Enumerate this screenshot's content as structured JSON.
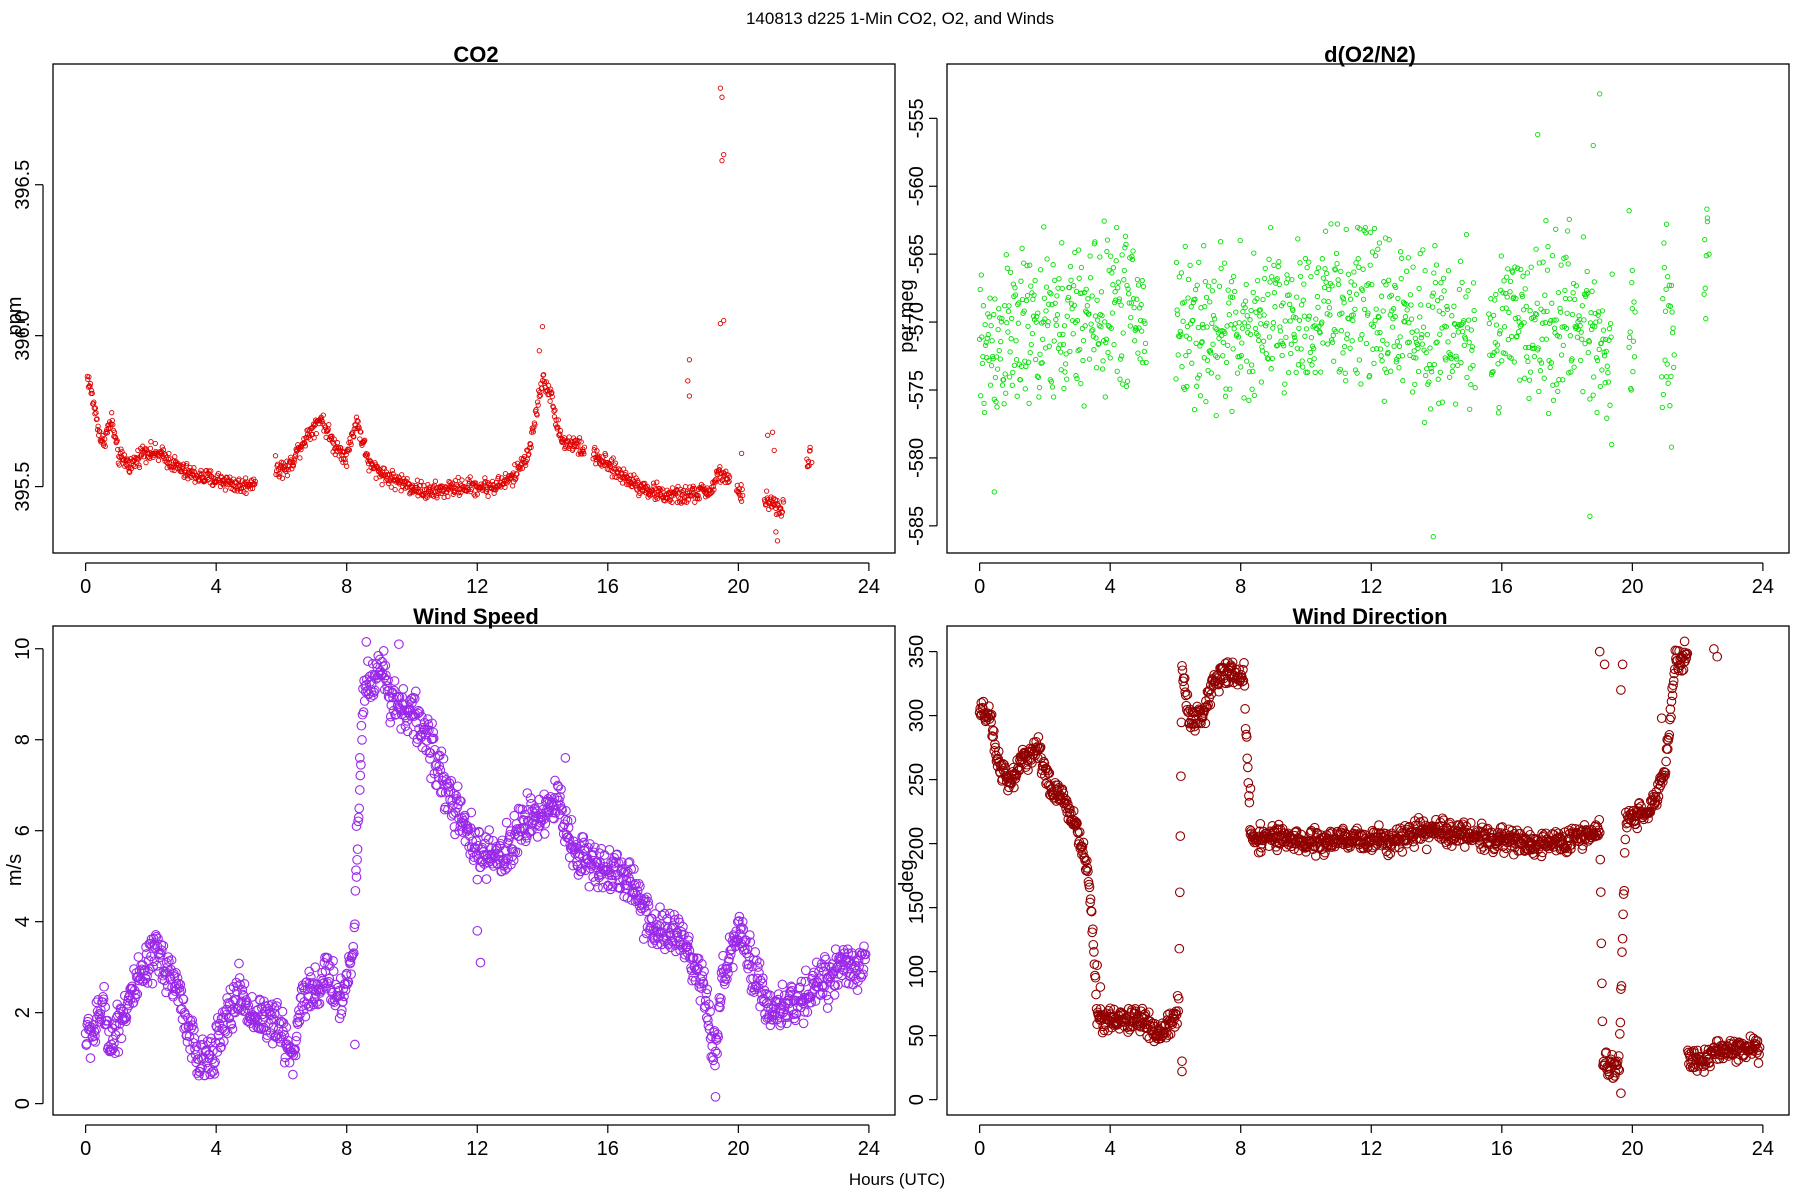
{
  "figure": {
    "supertitle": "140813   d225   1-Min CO2, O2, and Winds",
    "x_axis_label": "Hours (UTC)"
  },
  "chart_data": [
    {
      "type": "scatter",
      "title": "CO2",
      "ylabel": "ppm",
      "xlabel": "",
      "xlim": [
        -1,
        24.8
      ],
      "ylim": [
        395.28,
        396.9
      ],
      "xticks": [
        0,
        4,
        8,
        12,
        16,
        20,
        24
      ],
      "yticks": [
        395.5,
        396.0,
        396.5
      ],
      "ytick_labels": [
        "395.5",
        "396.0",
        "396.5"
      ],
      "color": "#e00000",
      "marker_size": "small",
      "series": [
        {
          "knots": [
            [
              0.05,
              395.86
            ],
            [
              0.1,
              395.85
            ],
            [
              0.5,
              395.64
            ],
            [
              0.8,
              395.72
            ],
            [
              1.0,
              395.6
            ],
            [
              1.4,
              395.57
            ],
            [
              1.8,
              395.62
            ],
            [
              2.4,
              395.6
            ],
            [
              3.0,
              395.55
            ],
            [
              3.6,
              395.53
            ],
            [
              4.2,
              395.52
            ],
            [
              4.8,
              395.5
            ],
            [
              5.2,
              395.52
            ],
            [
              5.8,
              395.56
            ],
            [
              6.2,
              395.56
            ],
            [
              6.6,
              395.64
            ],
            [
              7.2,
              395.73
            ],
            [
              7.6,
              395.64
            ],
            [
              8.0,
              395.6
            ],
            [
              8.3,
              395.72
            ],
            [
              8.7,
              395.57
            ],
            [
              9.3,
              395.53
            ],
            [
              10.0,
              395.5
            ],
            [
              10.5,
              395.48
            ],
            [
              11.5,
              395.5
            ],
            [
              12.5,
              395.5
            ],
            [
              13.1,
              395.53
            ],
            [
              13.6,
              395.62
            ],
            [
              14.0,
              395.86
            ],
            [
              14.2,
              395.82
            ],
            [
              14.6,
              395.65
            ],
            [
              15.0,
              395.64
            ],
            [
              15.6,
              395.6
            ],
            [
              16.4,
              395.54
            ],
            [
              17.2,
              395.49
            ],
            [
              17.8,
              395.47
            ],
            [
              18.4,
              395.47
            ],
            [
              19.2,
              395.49
            ],
            [
              19.4,
              395.55
            ],
            [
              20.0,
              395.48
            ],
            [
              21.0,
              395.45
            ],
            [
              21.3,
              395.42
            ],
            [
              22.2,
              395.6
            ]
          ],
          "gaps": [
            [
              5.2,
              5.8
            ],
            [
              15.3,
              15.55
            ],
            [
              19.75,
              19.95
            ],
            [
              20.15,
              20.8
            ],
            [
              21.4,
              22.1
            ]
          ],
          "spread": 0.025,
          "extra_points": [
            [
              19.45,
              396.82
            ],
            [
              19.5,
              396.79
            ],
            [
              19.5,
              396.58
            ],
            [
              19.55,
              396.6
            ],
            [
              19.45,
              396.04
            ],
            [
              19.55,
              396.05
            ],
            [
              14.0,
              396.03
            ],
            [
              13.9,
              395.95
            ],
            [
              18.5,
              395.92
            ],
            [
              18.45,
              395.85
            ],
            [
              18.5,
              395.8
            ],
            [
              20.1,
              395.61
            ],
            [
              20.9,
              395.67
            ],
            [
              21.05,
              395.68
            ],
            [
              21.1,
              395.62
            ],
            [
              21.15,
              395.35
            ],
            [
              21.2,
              395.32
            ],
            [
              22.2,
              395.63
            ],
            [
              22.25,
              395.58
            ]
          ]
        }
      ]
    },
    {
      "type": "scatter",
      "title": "d(O2/N2)",
      "ylabel": "per meg",
      "xlabel": "",
      "xlim": [
        -1,
        24.8
      ],
      "ylim": [
        -587,
        -551
      ],
      "xticks": [
        0,
        4,
        8,
        12,
        16,
        20,
        24
      ],
      "yticks": [
        -585,
        -580,
        -575,
        -570,
        -565,
        -560,
        -555
      ],
      "ytick_labels": [
        "-585",
        "-580",
        "-575",
        "-570",
        "-565",
        "-560",
        "-555"
      ],
      "color": "#00e000",
      "marker_size": "small",
      "series": [
        {
          "knots": [
            [
              0.0,
              -572
            ],
            [
              1.0,
              -571
            ],
            [
              2.0,
              -570.5
            ],
            [
              3.0,
              -570
            ],
            [
              4.0,
              -569
            ],
            [
              4.5,
              -568.5
            ],
            [
              5.0,
              -570
            ],
            [
              6.0,
              -570
            ],
            [
              7.0,
              -570.5
            ],
            [
              8.0,
              -571
            ],
            [
              9.0,
              -570
            ],
            [
              10.0,
              -569.5
            ],
            [
              11.0,
              -569
            ],
            [
              12.0,
              -569
            ],
            [
              13.0,
              -570
            ],
            [
              14.0,
              -570.5
            ],
            [
              15.0,
              -571
            ],
            [
              16.0,
              -570.5
            ],
            [
              17.0,
              -570
            ],
            [
              18.0,
              -569.5
            ],
            [
              19.0,
              -571
            ],
            [
              19.3,
              -573
            ],
            [
              20.0,
              -570
            ],
            [
              21.0,
              -570
            ],
            [
              22.3,
              -567
            ]
          ],
          "gaps": [
            [
              5.1,
              6.0
            ],
            [
              15.2,
              15.6
            ],
            [
              19.4,
              19.9
            ],
            [
              20.1,
              20.9
            ],
            [
              21.3,
              22.2
            ]
          ],
          "spread": 5,
          "extra_points": [
            [
              19.0,
              -553.2
            ],
            [
              19.9,
              -561.8
            ],
            [
              20.0,
              -566.2
            ],
            [
              21.05,
              -562.8
            ],
            [
              21.2,
              -579.2
            ],
            [
              22.3,
              -562.6
            ],
            [
              22.35,
              -565.0
            ],
            [
              17.1,
              -556.2
            ],
            [
              18.8,
              -557.0
            ],
            [
              13.9,
              -585.8
            ],
            [
              18.7,
              -584.3
            ],
            [
              0.45,
              -582.5
            ]
          ]
        }
      ]
    },
    {
      "type": "scatter",
      "title": "Wind Speed",
      "ylabel": "m/s",
      "xlabel": "",
      "xlim": [
        -1,
        24.8
      ],
      "ylim": [
        -0.25,
        10.5
      ],
      "xticks": [
        0,
        4,
        8,
        12,
        16,
        20,
        24
      ],
      "yticks": [
        0,
        2,
        4,
        6,
        8,
        10
      ],
      "ytick_labels": [
        "0",
        "2",
        "4",
        "6",
        "8",
        "10"
      ],
      "color": "#9a28e8",
      "marker_size": "large",
      "series": [
        {
          "knots": [
            [
              0.0,
              1.5
            ],
            [
              0.3,
              1.6
            ],
            [
              0.5,
              2.2
            ],
            [
              0.8,
              1.3
            ],
            [
              1.0,
              1.8
            ],
            [
              1.5,
              2.5
            ],
            [
              2.2,
              3.3
            ],
            [
              2.8,
              2.6
            ],
            [
              3.2,
              1.5
            ],
            [
              3.5,
              0.8
            ],
            [
              3.8,
              1.1
            ],
            [
              4.2,
              1.6
            ],
            [
              4.7,
              2.5
            ],
            [
              5.0,
              2.0
            ],
            [
              5.5,
              1.9
            ],
            [
              6.0,
              1.6
            ],
            [
              6.4,
              1.0
            ],
            [
              6.6,
              2.4
            ],
            [
              7.0,
              2.5
            ],
            [
              7.5,
              2.8
            ],
            [
              7.8,
              2.2
            ],
            [
              8.2,
              3.3
            ],
            [
              8.5,
              9.0
            ],
            [
              9.0,
              9.6
            ],
            [
              9.5,
              8.8
            ],
            [
              10.0,
              8.6
            ],
            [
              10.5,
              8.0
            ],
            [
              11.0,
              7.0
            ],
            [
              11.5,
              6.2
            ],
            [
              12.0,
              5.5
            ],
            [
              12.5,
              5.4
            ],
            [
              13.0,
              5.6
            ],
            [
              13.5,
              6.3
            ],
            [
              14.0,
              6.4
            ],
            [
              14.5,
              6.6
            ],
            [
              15.0,
              5.5
            ],
            [
              15.5,
              5.3
            ],
            [
              16.0,
              5.2
            ],
            [
              16.5,
              5.0
            ],
            [
              17.0,
              4.5
            ],
            [
              17.5,
              3.7
            ],
            [
              18.0,
              3.8
            ],
            [
              18.5,
              3.2
            ],
            [
              19.0,
              2.3
            ],
            [
              19.3,
              1.0
            ],
            [
              19.5,
              2.7
            ],
            [
              20.0,
              3.8
            ],
            [
              20.5,
              2.8
            ],
            [
              21.0,
              2.0
            ],
            [
              22.0,
              2.3
            ],
            [
              23.0,
              3.0
            ],
            [
              23.5,
              3.1
            ],
            [
              23.9,
              3.0
            ]
          ],
          "gaps": [],
          "spread": 0.45,
          "extra_points": [
            [
              8.3,
              6.1
            ],
            [
              8.4,
              7.6
            ],
            [
              8.25,
              1.3
            ],
            [
              12.1,
              3.1
            ],
            [
              12.0,
              3.8
            ],
            [
              19.3,
              0.15
            ],
            [
              14.7,
              7.6
            ],
            [
              8.6,
              10.15
            ],
            [
              9.6,
              10.1
            ]
          ]
        }
      ]
    },
    {
      "type": "scatter",
      "title": "Wind Direction",
      "ylabel": "deg",
      "xlabel": "",
      "xlim": [
        -1,
        24.8
      ],
      "ylim": [
        -12,
        370
      ],
      "xticks": [
        0,
        4,
        8,
        12,
        16,
        20,
        24
      ],
      "yticks": [
        0,
        50,
        100,
        150,
        200,
        250,
        300,
        350
      ],
      "ytick_labels": [
        "0",
        "50",
        "100",
        "150",
        "200",
        "250",
        "300",
        "350"
      ],
      "color": "#900000",
      "marker_size": "large",
      "series": [
        {
          "knots": [
            [
              0.0,
              302
            ],
            [
              0.3,
              300
            ],
            [
              0.5,
              270
            ],
            [
              0.9,
              245
            ],
            [
              1.3,
              265
            ],
            [
              1.8,
              275
            ],
            [
              2.2,
              240
            ],
            [
              2.6,
              235
            ],
            [
              3.0,
              210
            ],
            [
              3.3,
              180
            ],
            [
              3.45,
              140
            ],
            [
              3.6,
              65
            ],
            [
              4.0,
              62
            ],
            [
              5.0,
              62
            ],
            [
              5.5,
              50
            ],
            [
              6.0,
              65
            ],
            [
              6.1,
              75
            ],
            [
              6.2,
              340
            ],
            [
              6.4,
              300
            ],
            [
              6.8,
              298
            ],
            [
              7.1,
              320
            ],
            [
              7.5,
              335
            ],
            [
              8.1,
              330
            ],
            [
              8.3,
              205
            ],
            [
              9.0,
              205
            ],
            [
              10.0,
              200
            ],
            [
              11.0,
              203
            ],
            [
              12.0,
              203
            ],
            [
              13.0,
              205
            ],
            [
              14.0,
              210
            ],
            [
              15.0,
              207
            ],
            [
              16.0,
              203
            ],
            [
              17.0,
              200
            ],
            [
              18.0,
              202
            ],
            [
              19.0,
              210
            ],
            [
              19.1,
              30
            ],
            [
              19.3,
              25
            ],
            [
              19.6,
              30
            ],
            [
              19.8,
              220
            ],
            [
              20.5,
              225
            ],
            [
              21.0,
              255
            ],
            [
              21.3,
              340
            ],
            [
              21.7,
              345
            ],
            [
              21.2,
              40
            ],
            [
              21.6,
              35
            ],
            [
              22.0,
              30
            ],
            [
              23.0,
              40
            ],
            [
              23.9,
              40
            ]
          ],
          "gaps": [],
          "spread": 8,
          "extra_points": [
            [
              19.0,
              350
            ],
            [
              19.15,
              340
            ],
            [
              19.7,
              340
            ],
            [
              19.65,
              320
            ],
            [
              20.9,
              298
            ],
            [
              22.5,
              352
            ],
            [
              22.6,
              346
            ],
            [
              21.6,
              358
            ],
            [
              3.6,
              105
            ],
            [
              3.7,
              88
            ],
            [
              6.2,
              30
            ],
            [
              6.2,
              22
            ],
            [
              8.3,
              243
            ],
            [
              19.65,
              5
            ]
          ]
        }
      ]
    }
  ]
}
